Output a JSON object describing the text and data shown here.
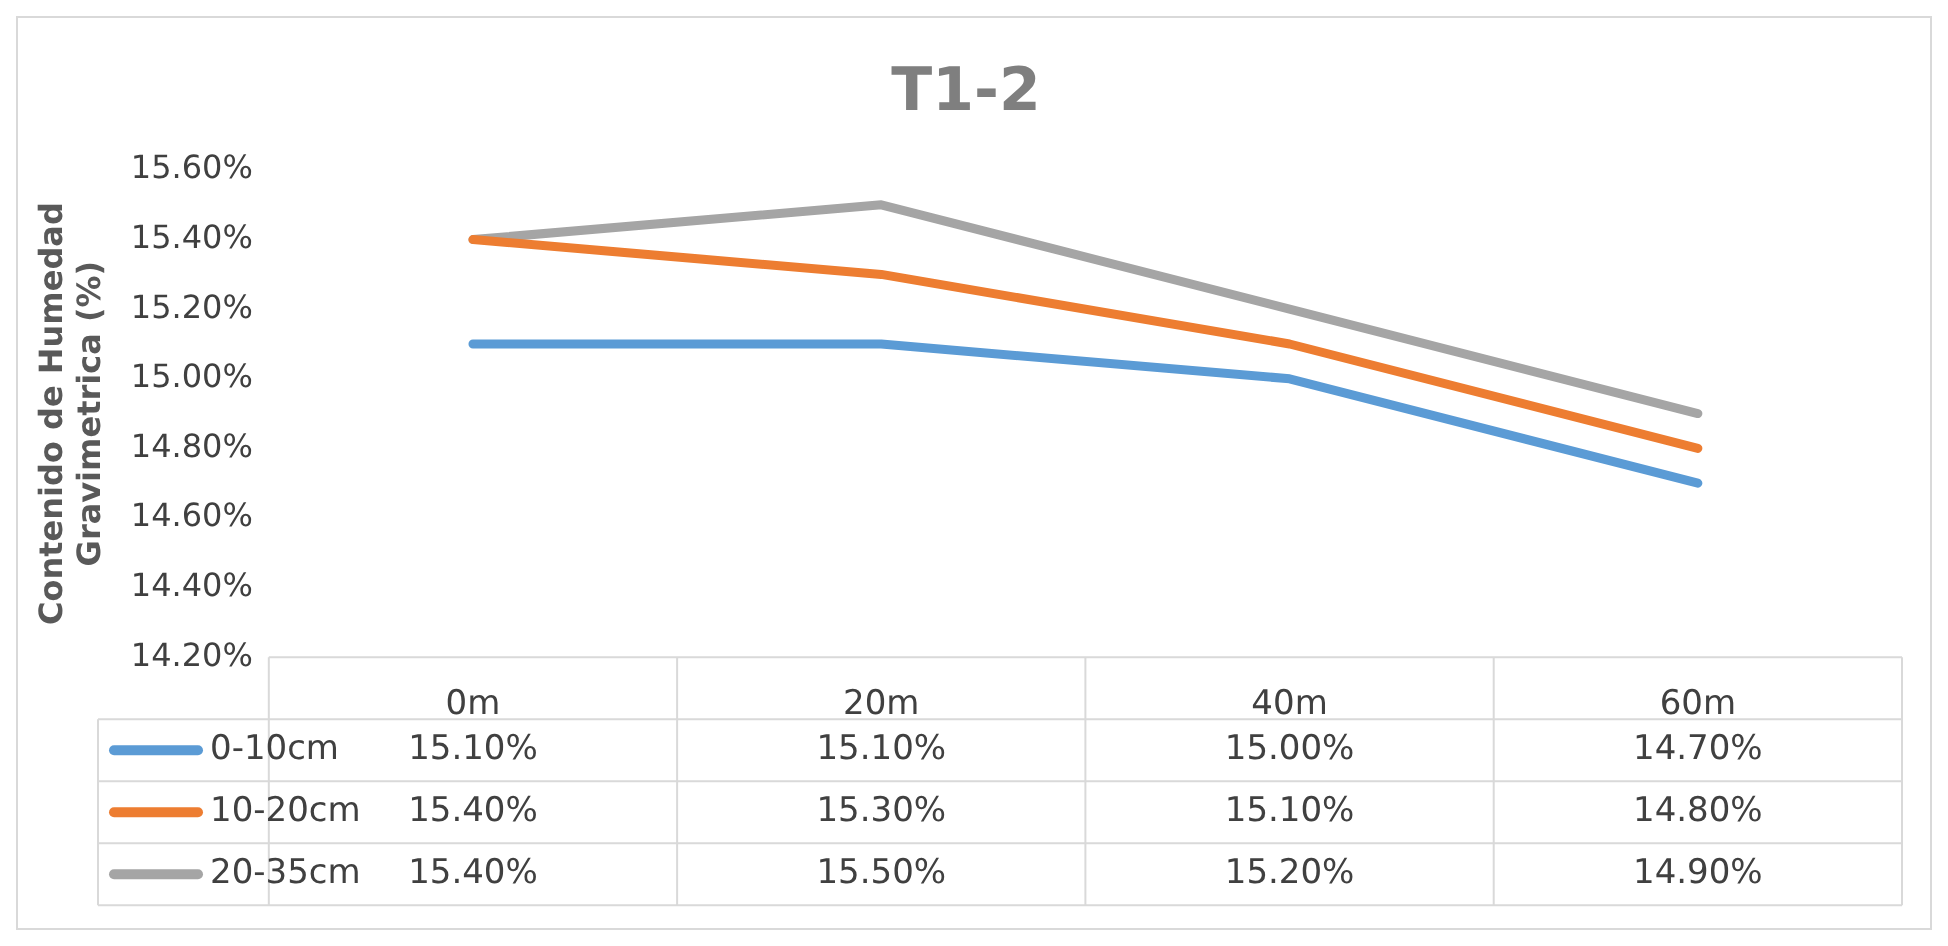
{
  "chart_data": {
    "type": "line",
    "title": "T1-2",
    "ylabel": "Contenido de Humedad\nGravimetrica (%)",
    "categories": [
      "0m",
      "20m",
      "40m",
      "60m"
    ],
    "series": [
      {
        "name": "0-10cm",
        "color": "#5b9bd5",
        "values": [
          15.1,
          15.1,
          15.0,
          14.7
        ],
        "value_labels": [
          "15.10%",
          "15.10%",
          "15.00%",
          "14.70%"
        ]
      },
      {
        "name": "10-20cm",
        "color": "#ed7d31",
        "values": [
          15.4,
          15.3,
          15.1,
          14.8
        ],
        "value_labels": [
          "15.40%",
          "15.30%",
          "15.10%",
          "14.80%"
        ]
      },
      {
        "name": "20-35cm",
        "color": "#a5a5a5",
        "values": [
          15.4,
          15.5,
          15.2,
          14.9
        ],
        "value_labels": [
          "15.40%",
          "15.50%",
          "15.20%",
          "14.90%"
        ]
      }
    ],
    "ylim": [
      14.2,
      15.6
    ],
    "yticks": [
      {
        "value": 14.2,
        "label": "14.20%"
      },
      {
        "value": 14.4,
        "label": "14.40%"
      },
      {
        "value": 14.6,
        "label": "14.60%"
      },
      {
        "value": 14.8,
        "label": "14.80%"
      },
      {
        "value": 15.0,
        "label": "15.00%"
      },
      {
        "value": 15.2,
        "label": "15.20%"
      },
      {
        "value": 15.4,
        "label": "15.40%"
      },
      {
        "value": 15.6,
        "label": "15.60%"
      }
    ],
    "grid": false,
    "legend": "bottom",
    "marker": "none",
    "line_style": "solid"
  }
}
